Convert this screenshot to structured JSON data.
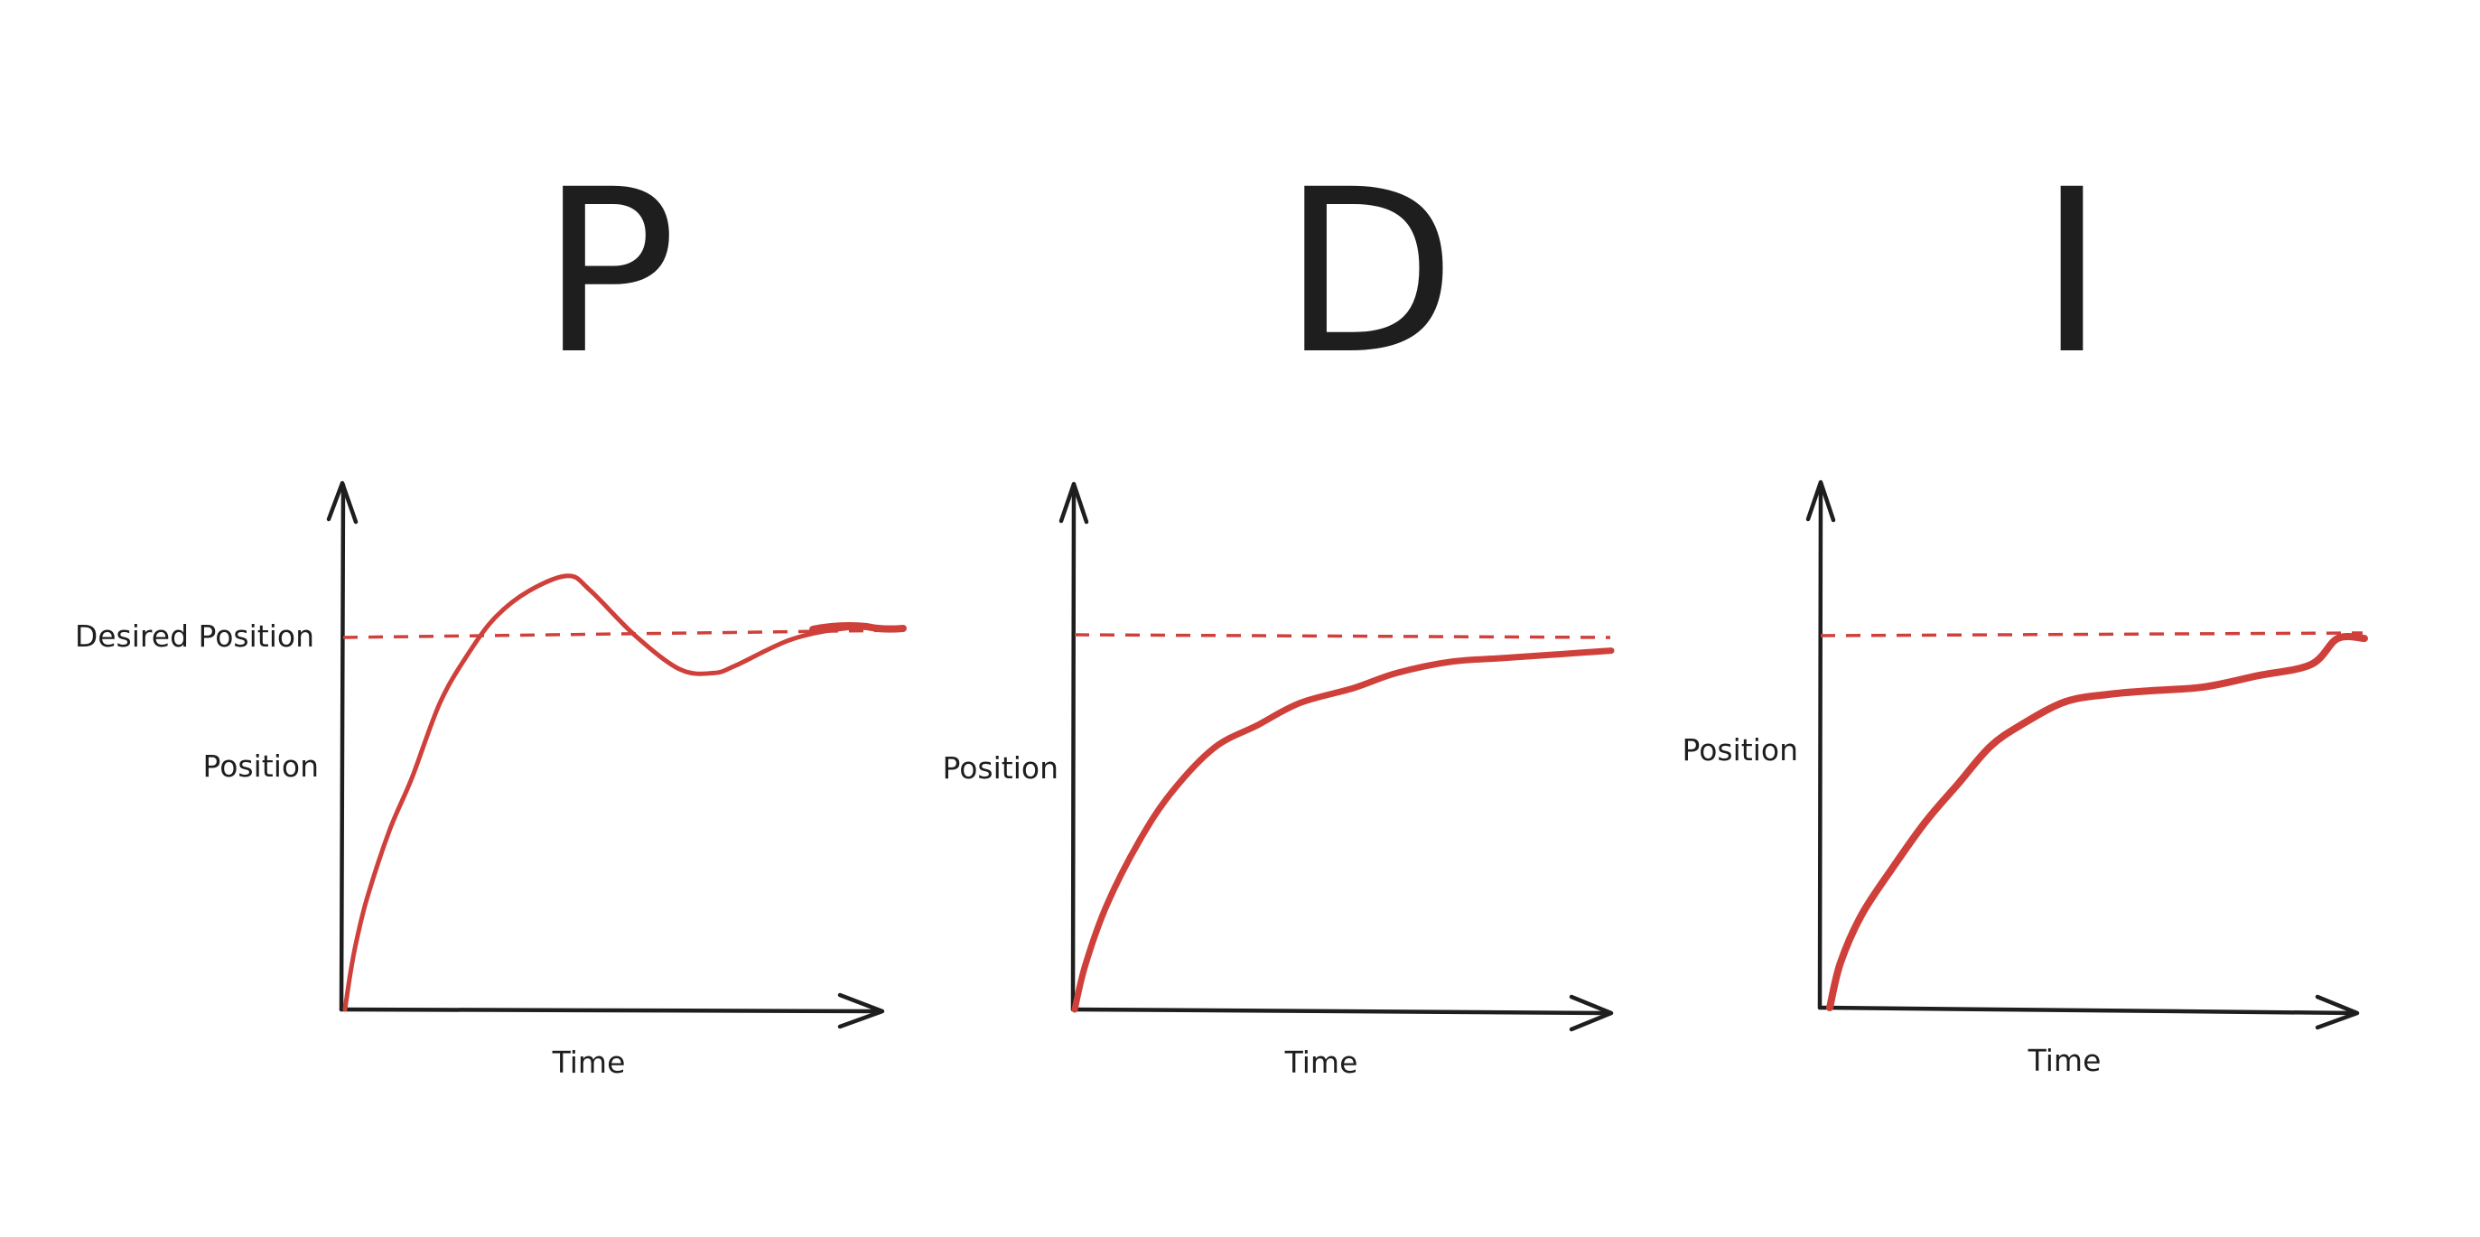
{
  "panels": [
    {
      "letter": "P",
      "ylabel_top": "Desired Position",
      "ylabel": "Position",
      "xlabel": "Time",
      "setpoint": 1.0,
      "response": [
        [
          0,
          0
        ],
        [
          0.01,
          0.1
        ],
        [
          0.02,
          0.18
        ],
        [
          0.04,
          0.3
        ],
        [
          0.08,
          0.48
        ],
        [
          0.12,
          0.62
        ],
        [
          0.17,
          0.82
        ],
        [
          0.22,
          0.95
        ],
        [
          0.27,
          1.05
        ],
        [
          0.33,
          1.12
        ],
        [
          0.4,
          1.16
        ],
        [
          0.44,
          1.12
        ],
        [
          0.52,
          1.0
        ],
        [
          0.6,
          0.91
        ],
        [
          0.66,
          0.9
        ],
        [
          0.7,
          0.92
        ],
        [
          0.8,
          0.99
        ],
        [
          0.9,
          1.02
        ],
        [
          1.0,
          1.02
        ]
      ]
    },
    {
      "letter": "D",
      "ylabel": "Position",
      "xlabel": "Time",
      "setpoint": 1.0,
      "response": [
        [
          0,
          0
        ],
        [
          0.02,
          0.12
        ],
        [
          0.06,
          0.28
        ],
        [
          0.12,
          0.45
        ],
        [
          0.18,
          0.58
        ],
        [
          0.26,
          0.7
        ],
        [
          0.34,
          0.76
        ],
        [
          0.42,
          0.82
        ],
        [
          0.52,
          0.86
        ],
        [
          0.6,
          0.9
        ],
        [
          0.7,
          0.93
        ],
        [
          0.8,
          0.94
        ],
        [
          0.9,
          0.95
        ],
        [
          1.0,
          0.96
        ]
      ]
    },
    {
      "letter": "I",
      "ylabel": "Position",
      "xlabel": "Time",
      "setpoint": 1.0,
      "response": [
        [
          0,
          0
        ],
        [
          0.02,
          0.12
        ],
        [
          0.06,
          0.25
        ],
        [
          0.12,
          0.38
        ],
        [
          0.18,
          0.5
        ],
        [
          0.24,
          0.6
        ],
        [
          0.3,
          0.7
        ],
        [
          0.36,
          0.76
        ],
        [
          0.44,
          0.82
        ],
        [
          0.52,
          0.84
        ],
        [
          0.6,
          0.85
        ],
        [
          0.7,
          0.86
        ],
        [
          0.8,
          0.89
        ],
        [
          0.9,
          0.92
        ],
        [
          0.95,
          0.99
        ],
        [
          1.0,
          0.99
        ]
      ]
    }
  ],
  "colors": {
    "axis": "#1e1e1e",
    "response": "#d0403b",
    "setpoint": "#d0403b",
    "text": "#1e1e1e"
  }
}
